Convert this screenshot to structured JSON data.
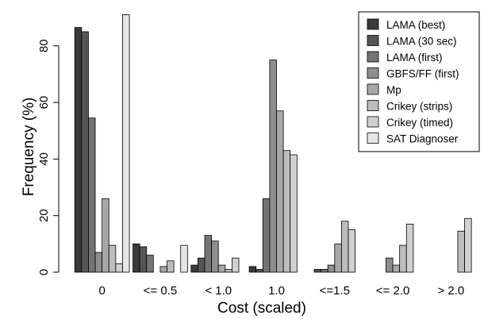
{
  "chart_data": {
    "type": "bar",
    "title": "",
    "xlabel": "Cost (scaled)",
    "ylabel": "Frequency (%)",
    "ylim": [
      0,
      92
    ],
    "yticks": [
      0,
      20,
      40,
      60,
      80
    ],
    "categories": [
      "0",
      "<= 0.5",
      "< 1.0",
      "1.0",
      "<=1.5",
      "<= 2.0",
      "> 2.0"
    ],
    "grid": false,
    "legend_position": "top-right",
    "series": [
      {
        "name": "LAMA (best)",
        "color": "#3a3a3a",
        "values": [
          86.5,
          10,
          2.5,
          2,
          0,
          0,
          0
        ]
      },
      {
        "name": "LAMA (30 sec)",
        "color": "#555555",
        "values": [
          85,
          9,
          5,
          1,
          1,
          0,
          0
        ]
      },
      {
        "name": "LAMA (first)",
        "color": "#747474",
        "values": [
          54.5,
          6,
          13,
          26,
          1,
          0,
          0
        ]
      },
      {
        "name": "GBFS/FF (first)",
        "color": "#8e8e8e",
        "values": [
          7,
          0,
          11,
          75,
          2.5,
          5,
          0
        ]
      },
      {
        "name": "Mp",
        "color": "#a8a8a8",
        "values": [
          26,
          2,
          2.5,
          57,
          10,
          2.5,
          0
        ]
      },
      {
        "name": "Crikey (strips)",
        "color": "#bdbdbd",
        "values": [
          9.5,
          4,
          1,
          43,
          18,
          9.5,
          14.5
        ]
      },
      {
        "name": "Crikey (timed)",
        "color": "#d1d1d1",
        "values": [
          3,
          0,
          5,
          41.5,
          15,
          17,
          19
        ]
      },
      {
        "name": "SAT Diagnoser",
        "color": "#e6e6e6",
        "values": [
          91,
          9.5,
          0,
          0,
          0,
          0,
          0
        ]
      }
    ]
  }
}
